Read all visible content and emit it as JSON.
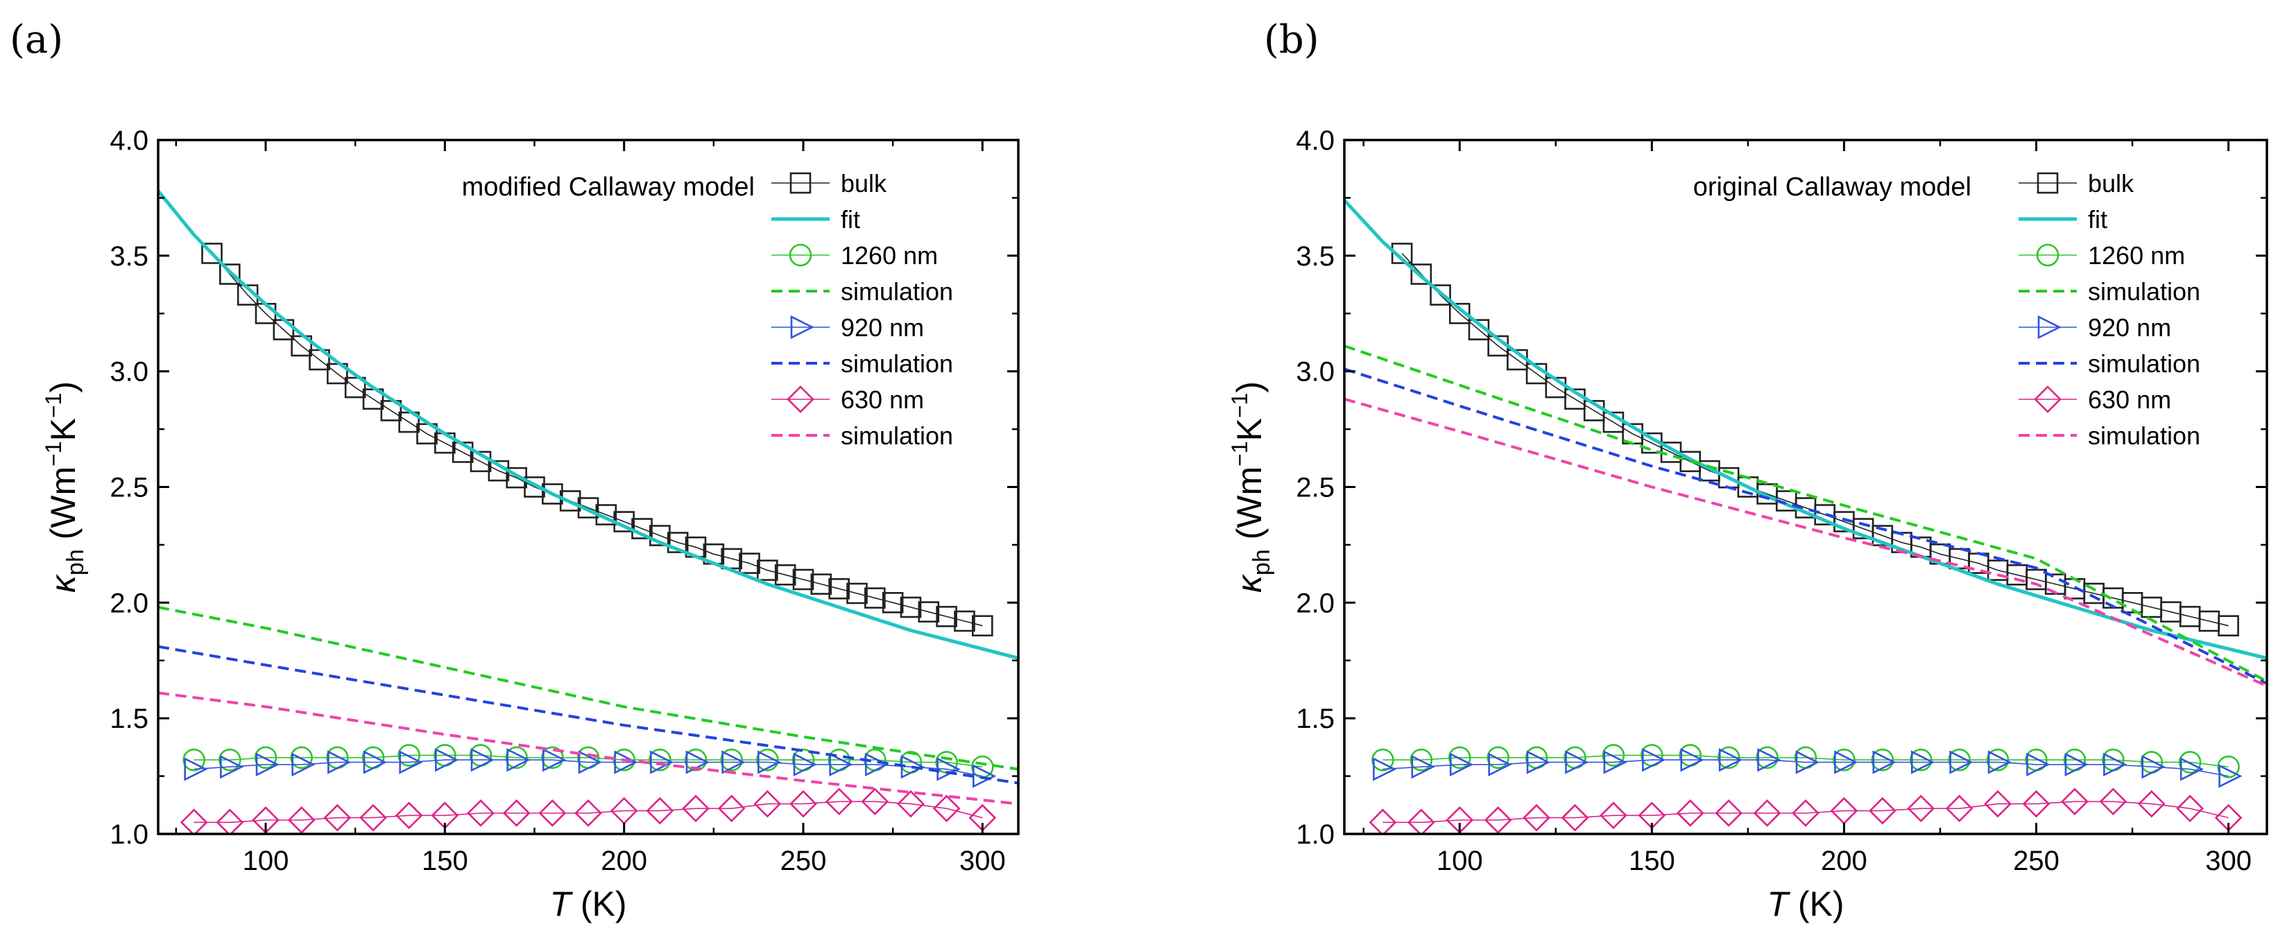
{
  "chart_data": [
    {
      "type": "line",
      "panel_label": "(a)",
      "annotation": "modified Callaway model",
      "xlabel_var": "T",
      "xlabel_unit": " (K)",
      "ylabel_symbol": "κ",
      "ylabel_sub": "ph",
      "ylabel_rest": " (Wm",
      "ylabel_sup1": "−1",
      "ylabel_k": "K",
      "ylabel_sup2": "−1",
      "ylabel_close": ")",
      "xlim": [
        70,
        310
      ],
      "ylim": [
        1.0,
        4.0
      ],
      "xticks": [
        100,
        150,
        200,
        250,
        300
      ],
      "xtick_labels": [
        "100",
        "150",
        "200",
        "250",
        "300"
      ],
      "yticks": [
        1.0,
        1.5,
        2.0,
        2.5,
        3.0,
        3.5,
        4.0
      ],
      "ytick_labels": [
        "1.0",
        "1.5",
        "2.0",
        "2.5",
        "3.0",
        "3.5",
        "4.0"
      ],
      "legend_position": "top-right",
      "series": [
        {
          "name": "bulk",
          "kind": "markers",
          "marker": "square",
          "color": "#222222",
          "x": [
            85,
            90,
            95,
            100,
            105,
            110,
            115,
            120,
            125,
            130,
            135,
            140,
            145,
            150,
            155,
            160,
            165,
            170,
            175,
            180,
            185,
            190,
            195,
            200,
            205,
            210,
            215,
            220,
            225,
            230,
            235,
            240,
            245,
            250,
            255,
            260,
            265,
            270,
            275,
            280,
            285,
            290,
            295,
            300
          ],
          "y": [
            3.51,
            3.42,
            3.33,
            3.25,
            3.18,
            3.11,
            3.05,
            2.99,
            2.93,
            2.88,
            2.83,
            2.78,
            2.73,
            2.69,
            2.65,
            2.61,
            2.57,
            2.54,
            2.5,
            2.47,
            2.44,
            2.41,
            2.38,
            2.35,
            2.32,
            2.29,
            2.26,
            2.24,
            2.21,
            2.19,
            2.17,
            2.14,
            2.12,
            2.1,
            2.08,
            2.06,
            2.04,
            2.02,
            2.0,
            1.98,
            1.96,
            1.94,
            1.92,
            1.9
          ]
        },
        {
          "name": "fit",
          "kind": "line",
          "color": "#22c4c4",
          "x": [
            70,
            80,
            90,
            100,
            110,
            120,
            130,
            140,
            150,
            160,
            170,
            180,
            190,
            200,
            210,
            220,
            230,
            240,
            250,
            260,
            270,
            280,
            290,
            300,
            310
          ],
          "y": [
            3.78,
            3.59,
            3.43,
            3.29,
            3.16,
            3.04,
            2.93,
            2.83,
            2.73,
            2.64,
            2.55,
            2.47,
            2.4,
            2.33,
            2.26,
            2.2,
            2.14,
            2.08,
            2.03,
            1.98,
            1.93,
            1.88,
            1.84,
            1.8,
            1.76
          ]
        },
        {
          "name": "1260 nm",
          "kind": "markers",
          "marker": "circle",
          "color": "#2dc52d",
          "x": [
            80,
            90,
            100,
            110,
            120,
            130,
            140,
            150,
            160,
            170,
            180,
            190,
            200,
            210,
            220,
            230,
            240,
            250,
            260,
            270,
            280,
            290,
            300
          ],
          "y": [
            1.32,
            1.32,
            1.33,
            1.33,
            1.33,
            1.33,
            1.34,
            1.34,
            1.34,
            1.33,
            1.33,
            1.33,
            1.32,
            1.32,
            1.32,
            1.32,
            1.32,
            1.32,
            1.32,
            1.32,
            1.31,
            1.31,
            1.29
          ]
        },
        {
          "name": "simulation",
          "kind": "dashed",
          "color": "#22cc22",
          "x": [
            70,
            100,
            150,
            200,
            250,
            310
          ],
          "y": [
            1.98,
            1.89,
            1.72,
            1.55,
            1.42,
            1.28
          ]
        },
        {
          "name": "920 nm",
          "kind": "markers",
          "marker": "triangle-right",
          "color": "#3355dd",
          "x": [
            80,
            90,
            100,
            110,
            120,
            130,
            140,
            150,
            160,
            170,
            180,
            190,
            200,
            210,
            220,
            230,
            240,
            250,
            260,
            270,
            280,
            290,
            300
          ],
          "y": [
            1.28,
            1.29,
            1.3,
            1.3,
            1.31,
            1.31,
            1.31,
            1.32,
            1.32,
            1.32,
            1.32,
            1.31,
            1.31,
            1.31,
            1.31,
            1.31,
            1.31,
            1.3,
            1.3,
            1.3,
            1.29,
            1.28,
            1.25
          ]
        },
        {
          "name": "simulation",
          "kind": "dashed",
          "color": "#2244dd",
          "x": [
            70,
            100,
            150,
            200,
            250,
            310
          ],
          "y": [
            1.81,
            1.73,
            1.6,
            1.47,
            1.36,
            1.22
          ]
        },
        {
          "name": "630 nm",
          "kind": "markers",
          "marker": "diamond",
          "color": "#dd2288",
          "x": [
            80,
            90,
            100,
            110,
            120,
            130,
            140,
            150,
            160,
            170,
            180,
            190,
            200,
            210,
            220,
            230,
            240,
            250,
            260,
            270,
            280,
            290,
            300
          ],
          "y": [
            1.05,
            1.05,
            1.06,
            1.06,
            1.07,
            1.07,
            1.08,
            1.08,
            1.09,
            1.09,
            1.09,
            1.09,
            1.1,
            1.1,
            1.11,
            1.11,
            1.13,
            1.13,
            1.14,
            1.14,
            1.13,
            1.11,
            1.07
          ]
        },
        {
          "name": "simulation",
          "kind": "dashed",
          "color": "#ee44aa",
          "x": [
            70,
            100,
            150,
            200,
            250,
            310
          ],
          "y": [
            1.61,
            1.55,
            1.43,
            1.32,
            1.23,
            1.13
          ]
        }
      ]
    },
    {
      "type": "line",
      "panel_label": "(b)",
      "annotation": "original Callaway model",
      "xlabel_var": "T",
      "xlabel_unit": " (K)",
      "ylabel_symbol": "κ",
      "ylabel_sub": "ph",
      "ylabel_rest": " (Wm",
      "ylabel_sup1": "−1",
      "ylabel_k": "K",
      "ylabel_sup2": "−1",
      "ylabel_close": ")",
      "xlim": [
        70,
        310
      ],
      "ylim": [
        1.0,
        4.0
      ],
      "xticks": [
        100,
        150,
        200,
        250,
        300
      ],
      "xtick_labels": [
        "100",
        "150",
        "200",
        "250",
        "300"
      ],
      "yticks": [
        1.0,
        1.5,
        2.0,
        2.5,
        3.0,
        3.5,
        4.0
      ],
      "ytick_labels": [
        "1.0",
        "1.5",
        "2.0",
        "2.5",
        "3.0",
        "3.5",
        "4.0"
      ],
      "legend_position": "top-right",
      "series": [
        {
          "name": "bulk",
          "kind": "markers",
          "marker": "square",
          "color": "#222222",
          "x": [
            85,
            90,
            95,
            100,
            105,
            110,
            115,
            120,
            125,
            130,
            135,
            140,
            145,
            150,
            155,
            160,
            165,
            170,
            175,
            180,
            185,
            190,
            195,
            200,
            205,
            210,
            215,
            220,
            225,
            230,
            235,
            240,
            245,
            250,
            255,
            260,
            265,
            270,
            275,
            280,
            285,
            290,
            295,
            300
          ],
          "y": [
            3.51,
            3.42,
            3.33,
            3.25,
            3.18,
            3.11,
            3.05,
            2.99,
            2.93,
            2.88,
            2.83,
            2.78,
            2.73,
            2.69,
            2.65,
            2.61,
            2.57,
            2.54,
            2.5,
            2.47,
            2.44,
            2.41,
            2.38,
            2.35,
            2.32,
            2.29,
            2.26,
            2.24,
            2.21,
            2.19,
            2.17,
            2.14,
            2.12,
            2.1,
            2.08,
            2.06,
            2.04,
            2.02,
            2.0,
            1.98,
            1.96,
            1.94,
            1.92,
            1.9
          ]
        },
        {
          "name": "fit",
          "kind": "line",
          "color": "#22c4c4",
          "x": [
            70,
            80,
            90,
            100,
            110,
            120,
            130,
            140,
            150,
            160,
            170,
            180,
            190,
            200,
            210,
            220,
            230,
            240,
            250,
            260,
            270,
            280,
            290,
            300,
            310
          ],
          "y": [
            3.74,
            3.56,
            3.41,
            3.27,
            3.14,
            3.02,
            2.91,
            2.81,
            2.71,
            2.62,
            2.54,
            2.46,
            2.39,
            2.32,
            2.26,
            2.2,
            2.14,
            2.08,
            2.03,
            1.98,
            1.93,
            1.88,
            1.84,
            1.8,
            1.76
          ]
        },
        {
          "name": "1260 nm",
          "kind": "markers",
          "marker": "circle",
          "color": "#2dc52d",
          "x": [
            80,
            90,
            100,
            110,
            120,
            130,
            140,
            150,
            160,
            170,
            180,
            190,
            200,
            210,
            220,
            230,
            240,
            250,
            260,
            270,
            280,
            290,
            300
          ],
          "y": [
            1.32,
            1.32,
            1.33,
            1.33,
            1.33,
            1.33,
            1.34,
            1.34,
            1.34,
            1.33,
            1.33,
            1.33,
            1.32,
            1.32,
            1.32,
            1.32,
            1.32,
            1.32,
            1.32,
            1.32,
            1.31,
            1.31,
            1.29
          ]
        },
        {
          "name": "simulation",
          "kind": "dashed",
          "color": "#22cc22",
          "x": [
            70,
            100,
            150,
            200,
            250,
            310
          ],
          "y": [
            3.11,
            2.94,
            2.66,
            2.42,
            2.19,
            1.66
          ]
        },
        {
          "name": "920 nm",
          "kind": "markers",
          "marker": "triangle-right",
          "color": "#3355dd",
          "x": [
            80,
            90,
            100,
            110,
            120,
            130,
            140,
            150,
            160,
            170,
            180,
            190,
            200,
            210,
            220,
            230,
            240,
            250,
            260,
            270,
            280,
            290,
            300
          ],
          "y": [
            1.28,
            1.29,
            1.3,
            1.3,
            1.31,
            1.31,
            1.31,
            1.32,
            1.32,
            1.32,
            1.32,
            1.31,
            1.31,
            1.31,
            1.31,
            1.31,
            1.31,
            1.3,
            1.3,
            1.3,
            1.29,
            1.28,
            1.25
          ]
        },
        {
          "name": "simulation",
          "kind": "dashed",
          "color": "#2244dd",
          "x": [
            70,
            100,
            150,
            200,
            250,
            310
          ],
          "y": [
            3.01,
            2.85,
            2.59,
            2.36,
            2.15,
            1.65
          ]
        },
        {
          "name": "630 nm",
          "kind": "markers",
          "marker": "diamond",
          "color": "#dd2288",
          "x": [
            80,
            90,
            100,
            110,
            120,
            130,
            140,
            150,
            160,
            170,
            180,
            190,
            200,
            210,
            220,
            230,
            240,
            250,
            260,
            270,
            280,
            290,
            300
          ],
          "y": [
            1.05,
            1.05,
            1.06,
            1.06,
            1.07,
            1.07,
            1.08,
            1.08,
            1.09,
            1.09,
            1.09,
            1.09,
            1.1,
            1.1,
            1.11,
            1.11,
            1.13,
            1.13,
            1.14,
            1.14,
            1.13,
            1.11,
            1.07
          ]
        },
        {
          "name": "simulation",
          "kind": "dashed",
          "color": "#ee44aa",
          "x": [
            70,
            100,
            150,
            200,
            250,
            310
          ],
          "y": [
            2.88,
            2.74,
            2.5,
            2.28,
            2.08,
            1.64
          ]
        }
      ]
    }
  ]
}
